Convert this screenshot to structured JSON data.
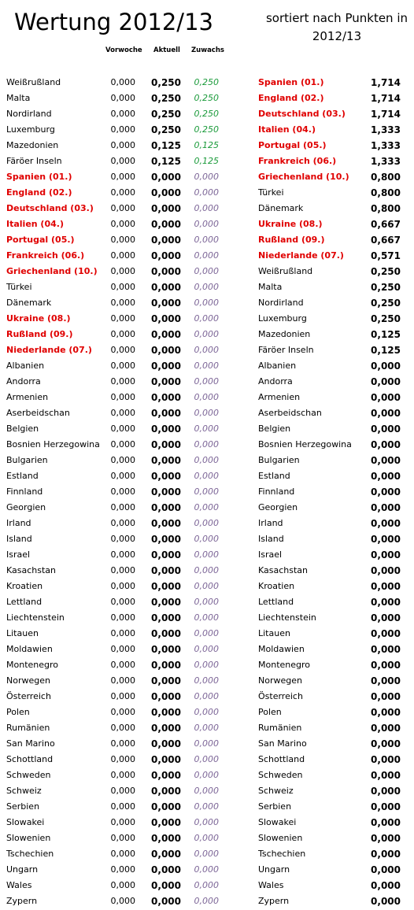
{
  "header": {
    "title": "Wertung 2012/13",
    "subtitle": "sortiert nach Punkten in 2012/13",
    "col_vorwoche": "Vorwoche",
    "col_aktuell": "Aktuell",
    "col_zuwachs": "Zuwachs"
  },
  "left_rows": [
    {
      "name": "Weißrußland",
      "vorwoche": "0,000",
      "aktuell": "0,250",
      "zuwachs": "0,250",
      "highlight": false
    },
    {
      "name": "Malta",
      "vorwoche": "0,000",
      "aktuell": "0,250",
      "zuwachs": "0,250",
      "highlight": false
    },
    {
      "name": "Nordirland",
      "vorwoche": "0,000",
      "aktuell": "0,250",
      "zuwachs": "0,250",
      "highlight": false
    },
    {
      "name": "Luxemburg",
      "vorwoche": "0,000",
      "aktuell": "0,250",
      "zuwachs": "0,250",
      "highlight": false
    },
    {
      "name": "Mazedonien",
      "vorwoche": "0,000",
      "aktuell": "0,125",
      "zuwachs": "0,125",
      "highlight": false
    },
    {
      "name": "Färöer Inseln",
      "vorwoche": "0,000",
      "aktuell": "0,125",
      "zuwachs": "0,125",
      "highlight": false
    },
    {
      "name": "Spanien (01.)",
      "vorwoche": "0,000",
      "aktuell": "0,000",
      "zuwachs": "0,000",
      "highlight": true
    },
    {
      "name": "England (02.)",
      "vorwoche": "0,000",
      "aktuell": "0,000",
      "zuwachs": "0,000",
      "highlight": true
    },
    {
      "name": "Deutschland (03.)",
      "vorwoche": "0,000",
      "aktuell": "0,000",
      "zuwachs": "0,000",
      "highlight": true
    },
    {
      "name": "Italien (04.)",
      "vorwoche": "0,000",
      "aktuell": "0,000",
      "zuwachs": "0,000",
      "highlight": true
    },
    {
      "name": "Portugal (05.)",
      "vorwoche": "0,000",
      "aktuell": "0,000",
      "zuwachs": "0,000",
      "highlight": true
    },
    {
      "name": "Frankreich (06.)",
      "vorwoche": "0,000",
      "aktuell": "0,000",
      "zuwachs": "0,000",
      "highlight": true
    },
    {
      "name": "Griechenland (10.)",
      "vorwoche": "0,000",
      "aktuell": "0,000",
      "zuwachs": "0,000",
      "highlight": true
    },
    {
      "name": "Türkei",
      "vorwoche": "0,000",
      "aktuell": "0,000",
      "zuwachs": "0,000",
      "highlight": false
    },
    {
      "name": "Dänemark",
      "vorwoche": "0,000",
      "aktuell": "0,000",
      "zuwachs": "0,000",
      "highlight": false
    },
    {
      "name": "Ukraine (08.)",
      "vorwoche": "0,000",
      "aktuell": "0,000",
      "zuwachs": "0,000",
      "highlight": true
    },
    {
      "name": "Rußland (09.)",
      "vorwoche": "0,000",
      "aktuell": "0,000",
      "zuwachs": "0,000",
      "highlight": true
    },
    {
      "name": "Niederlande (07.)",
      "vorwoche": "0,000",
      "aktuell": "0,000",
      "zuwachs": "0,000",
      "highlight": true
    },
    {
      "name": "Albanien",
      "vorwoche": "0,000",
      "aktuell": "0,000",
      "zuwachs": "0,000",
      "highlight": false
    },
    {
      "name": "Andorra",
      "vorwoche": "0,000",
      "aktuell": "0,000",
      "zuwachs": "0,000",
      "highlight": false
    },
    {
      "name": "Armenien",
      "vorwoche": "0,000",
      "aktuell": "0,000",
      "zuwachs": "0,000",
      "highlight": false
    },
    {
      "name": "Aserbeidschan",
      "vorwoche": "0,000",
      "aktuell": "0,000",
      "zuwachs": "0,000",
      "highlight": false
    },
    {
      "name": "Belgien",
      "vorwoche": "0,000",
      "aktuell": "0,000",
      "zuwachs": "0,000",
      "highlight": false
    },
    {
      "name": "Bosnien Herzegowina",
      "vorwoche": "0,000",
      "aktuell": "0,000",
      "zuwachs": "0,000",
      "highlight": false
    },
    {
      "name": "Bulgarien",
      "vorwoche": "0,000",
      "aktuell": "0,000",
      "zuwachs": "0,000",
      "highlight": false
    },
    {
      "name": "Estland",
      "vorwoche": "0,000",
      "aktuell": "0,000",
      "zuwachs": "0,000",
      "highlight": false
    },
    {
      "name": "Finnland",
      "vorwoche": "0,000",
      "aktuell": "0,000",
      "zuwachs": "0,000",
      "highlight": false
    },
    {
      "name": "Georgien",
      "vorwoche": "0,000",
      "aktuell": "0,000",
      "zuwachs": "0,000",
      "highlight": false
    },
    {
      "name": "Irland",
      "vorwoche": "0,000",
      "aktuell": "0,000",
      "zuwachs": "0,000",
      "highlight": false
    },
    {
      "name": "Island",
      "vorwoche": "0,000",
      "aktuell": "0,000",
      "zuwachs": "0,000",
      "highlight": false
    },
    {
      "name": "Israel",
      "vorwoche": "0,000",
      "aktuell": "0,000",
      "zuwachs": "0,000",
      "highlight": false
    },
    {
      "name": "Kasachstan",
      "vorwoche": "0,000",
      "aktuell": "0,000",
      "zuwachs": "0,000",
      "highlight": false
    },
    {
      "name": "Kroatien",
      "vorwoche": "0,000",
      "aktuell": "0,000",
      "zuwachs": "0,000",
      "highlight": false
    },
    {
      "name": "Lettland",
      "vorwoche": "0,000",
      "aktuell": "0,000",
      "zuwachs": "0,000",
      "highlight": false
    },
    {
      "name": "Liechtenstein",
      "vorwoche": "0,000",
      "aktuell": "0,000",
      "zuwachs": "0,000",
      "highlight": false
    },
    {
      "name": "Litauen",
      "vorwoche": "0,000",
      "aktuell": "0,000",
      "zuwachs": "0,000",
      "highlight": false
    },
    {
      "name": "Moldawien",
      "vorwoche": "0,000",
      "aktuell": "0,000",
      "zuwachs": "0,000",
      "highlight": false
    },
    {
      "name": "Montenegro",
      "vorwoche": "0,000",
      "aktuell": "0,000",
      "zuwachs": "0,000",
      "highlight": false
    },
    {
      "name": "Norwegen",
      "vorwoche": "0,000",
      "aktuell": "0,000",
      "zuwachs": "0,000",
      "highlight": false
    },
    {
      "name": "Österreich",
      "vorwoche": "0,000",
      "aktuell": "0,000",
      "zuwachs": "0,000",
      "highlight": false
    },
    {
      "name": "Polen",
      "vorwoche": "0,000",
      "aktuell": "0,000",
      "zuwachs": "0,000",
      "highlight": false
    },
    {
      "name": "Rumänien",
      "vorwoche": "0,000",
      "aktuell": "0,000",
      "zuwachs": "0,000",
      "highlight": false
    },
    {
      "name": "San Marino",
      "vorwoche": "0,000",
      "aktuell": "0,000",
      "zuwachs": "0,000",
      "highlight": false
    },
    {
      "name": "Schottland",
      "vorwoche": "0,000",
      "aktuell": "0,000",
      "zuwachs": "0,000",
      "highlight": false
    },
    {
      "name": "Schweden",
      "vorwoche": "0,000",
      "aktuell": "0,000",
      "zuwachs": "0,000",
      "highlight": false
    },
    {
      "name": "Schweiz",
      "vorwoche": "0,000",
      "aktuell": "0,000",
      "zuwachs": "0,000",
      "highlight": false
    },
    {
      "name": "Serbien",
      "vorwoche": "0,000",
      "aktuell": "0,000",
      "zuwachs": "0,000",
      "highlight": false
    },
    {
      "name": "Slowakei",
      "vorwoche": "0,000",
      "aktuell": "0,000",
      "zuwachs": "0,000",
      "highlight": false
    },
    {
      "name": "Slowenien",
      "vorwoche": "0,000",
      "aktuell": "0,000",
      "zuwachs": "0,000",
      "highlight": false
    },
    {
      "name": "Tschechien",
      "vorwoche": "0,000",
      "aktuell": "0,000",
      "zuwachs": "0,000",
      "highlight": false
    },
    {
      "name": "Ungarn",
      "vorwoche": "0,000",
      "aktuell": "0,000",
      "zuwachs": "0,000",
      "highlight": false
    },
    {
      "name": "Wales",
      "vorwoche": "0,000",
      "aktuell": "0,000",
      "zuwachs": "0,000",
      "highlight": false
    },
    {
      "name": "Zypern",
      "vorwoche": "0,000",
      "aktuell": "0,000",
      "zuwachs": "0,000",
      "highlight": false
    }
  ],
  "right_rows": [
    {
      "name": "Spanien (01.)",
      "punkte": "1,714",
      "highlight": true
    },
    {
      "name": "England (02.)",
      "punkte": "1,714",
      "highlight": true
    },
    {
      "name": "Deutschland (03.)",
      "punkte": "1,714",
      "highlight": true
    },
    {
      "name": "Italien (04.)",
      "punkte": "1,333",
      "highlight": true
    },
    {
      "name": "Portugal (05.)",
      "punkte": "1,333",
      "highlight": true
    },
    {
      "name": "Frankreich (06.)",
      "punkte": "1,333",
      "highlight": true
    },
    {
      "name": "Griechenland (10.)",
      "punkte": "0,800",
      "highlight": true
    },
    {
      "name": "Türkei",
      "punkte": "0,800",
      "highlight": false
    },
    {
      "name": "Dänemark",
      "punkte": "0,800",
      "highlight": false
    },
    {
      "name": "Ukraine (08.)",
      "punkte": "0,667",
      "highlight": true
    },
    {
      "name": "Rußland (09.)",
      "punkte": "0,667",
      "highlight": true
    },
    {
      "name": "Niederlande (07.)",
      "punkte": "0,571",
      "highlight": true
    },
    {
      "name": "Weißrußland",
      "punkte": "0,250",
      "highlight": false
    },
    {
      "name": "Malta",
      "punkte": "0,250",
      "highlight": false
    },
    {
      "name": "Nordirland",
      "punkte": "0,250",
      "highlight": false
    },
    {
      "name": "Luxemburg",
      "punkte": "0,250",
      "highlight": false
    },
    {
      "name": "Mazedonien",
      "punkte": "0,125",
      "highlight": false
    },
    {
      "name": "Färöer Inseln",
      "punkte": "0,125",
      "highlight": false
    },
    {
      "name": "Albanien",
      "punkte": "0,000",
      "highlight": false
    },
    {
      "name": "Andorra",
      "punkte": "0,000",
      "highlight": false
    },
    {
      "name": "Armenien",
      "punkte": "0,000",
      "highlight": false
    },
    {
      "name": "Aserbeidschan",
      "punkte": "0,000",
      "highlight": false
    },
    {
      "name": "Belgien",
      "punkte": "0,000",
      "highlight": false
    },
    {
      "name": "Bosnien Herzegowina",
      "punkte": "0,000",
      "highlight": false
    },
    {
      "name": "Bulgarien",
      "punkte": "0,000",
      "highlight": false
    },
    {
      "name": "Estland",
      "punkte": "0,000",
      "highlight": false
    },
    {
      "name": "Finnland",
      "punkte": "0,000",
      "highlight": false
    },
    {
      "name": "Georgien",
      "punkte": "0,000",
      "highlight": false
    },
    {
      "name": "Irland",
      "punkte": "0,000",
      "highlight": false
    },
    {
      "name": "Island",
      "punkte": "0,000",
      "highlight": false
    },
    {
      "name": "Israel",
      "punkte": "0,000",
      "highlight": false
    },
    {
      "name": "Kasachstan",
      "punkte": "0,000",
      "highlight": false
    },
    {
      "name": "Kroatien",
      "punkte": "0,000",
      "highlight": false
    },
    {
      "name": "Lettland",
      "punkte": "0,000",
      "highlight": false
    },
    {
      "name": "Liechtenstein",
      "punkte": "0,000",
      "highlight": false
    },
    {
      "name": "Litauen",
      "punkte": "0,000",
      "highlight": false
    },
    {
      "name": "Moldawien",
      "punkte": "0,000",
      "highlight": false
    },
    {
      "name": "Montenegro",
      "punkte": "0,000",
      "highlight": false
    },
    {
      "name": "Norwegen",
      "punkte": "0,000",
      "highlight": false
    },
    {
      "name": "Österreich",
      "punkte": "0,000",
      "highlight": false
    },
    {
      "name": "Polen",
      "punkte": "0,000",
      "highlight": false
    },
    {
      "name": "Rumänien",
      "punkte": "0,000",
      "highlight": false
    },
    {
      "name": "San Marino",
      "punkte": "0,000",
      "highlight": false
    },
    {
      "name": "Schottland",
      "punkte": "0,000",
      "highlight": false
    },
    {
      "name": "Schweden",
      "punkte": "0,000",
      "highlight": false
    },
    {
      "name": "Schweiz",
      "punkte": "0,000",
      "highlight": false
    },
    {
      "name": "Serbien",
      "punkte": "0,000",
      "highlight": false
    },
    {
      "name": "Slowakei",
      "punkte": "0,000",
      "highlight": false
    },
    {
      "name": "Slowenien",
      "punkte": "0,000",
      "highlight": false
    },
    {
      "name": "Tschechien",
      "punkte": "0,000",
      "highlight": false
    },
    {
      "name": "Ungarn",
      "punkte": "0,000",
      "highlight": false
    },
    {
      "name": "Wales",
      "punkte": "0,000",
      "highlight": false
    },
    {
      "name": "Zypern",
      "punkte": "0,000",
      "highlight": false
    }
  ],
  "colors": {
    "highlight": "#e00000",
    "zuwachs_positive": "#1a9a3a",
    "zuwachs_zero": "#7b6496"
  }
}
